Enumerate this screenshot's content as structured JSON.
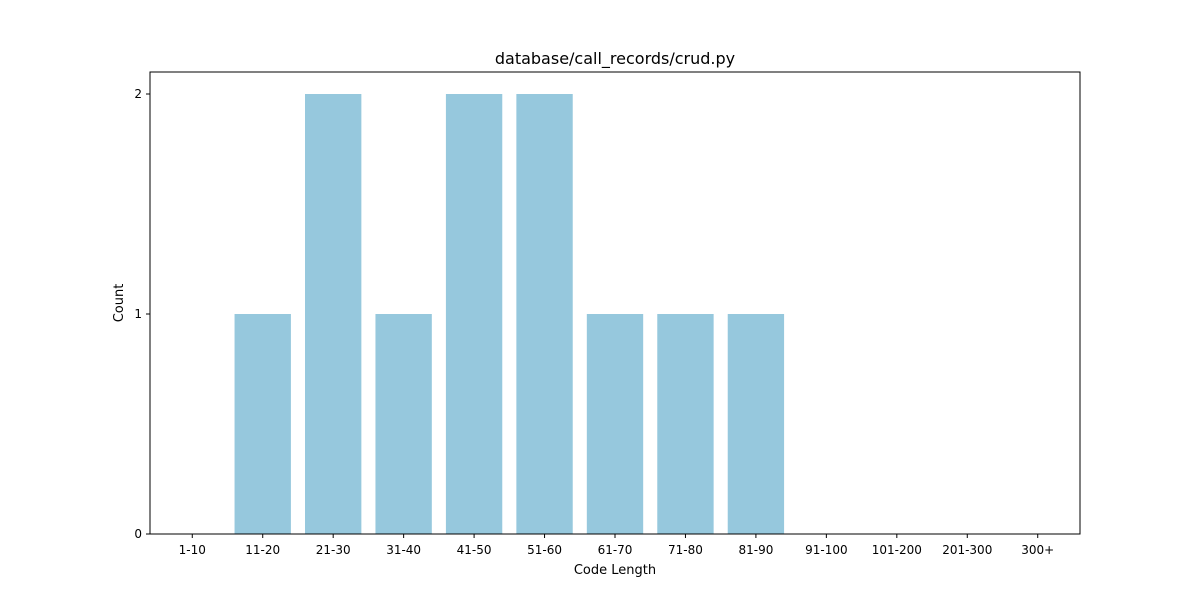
{
  "chart_data": {
    "type": "bar",
    "title": "database/call_records/crud.py",
    "xlabel": "Code Length",
    "ylabel": "Count",
    "categories": [
      "1-10",
      "11-20",
      "21-30",
      "31-40",
      "41-50",
      "51-60",
      "61-70",
      "71-80",
      "81-90",
      "91-100",
      "101-200",
      "201-300",
      "300+"
    ],
    "values": [
      0,
      1,
      2,
      1,
      2,
      2,
      1,
      1,
      1,
      0,
      0,
      0,
      0
    ],
    "yticks": [
      0,
      1,
      2
    ],
    "ylim": [
      0,
      2.1
    ],
    "bar_color": "#96c8dd",
    "grid": false,
    "legend": "none"
  }
}
